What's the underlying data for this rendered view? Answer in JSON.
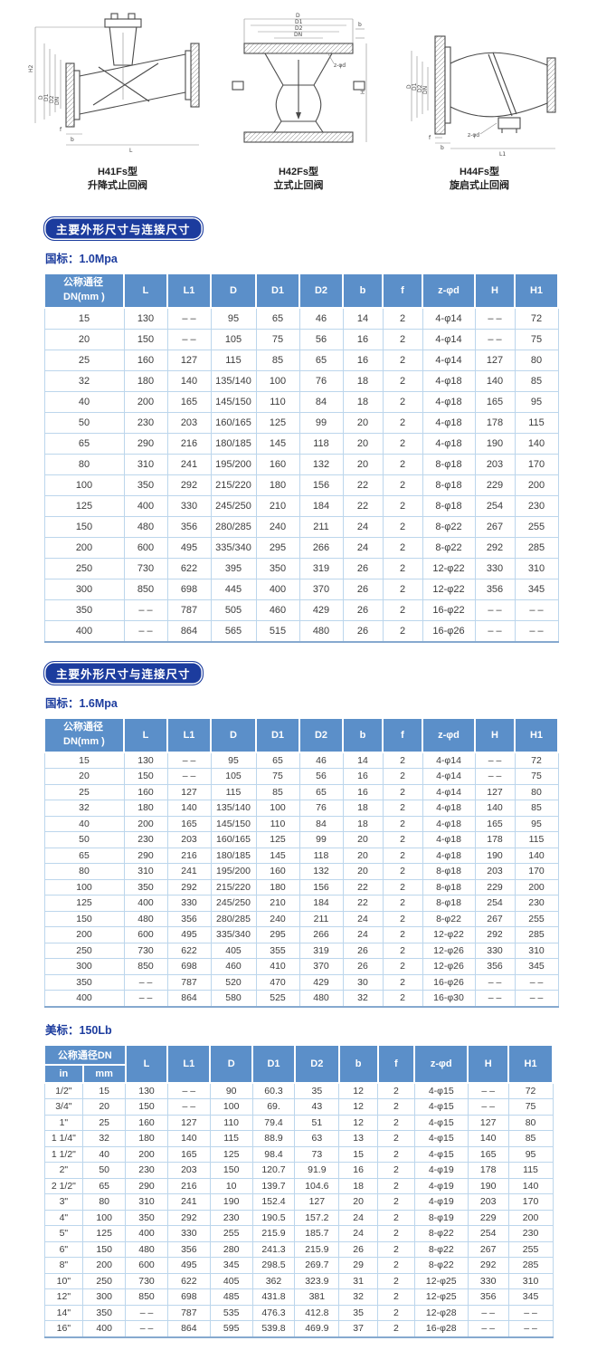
{
  "colors": {
    "accent_navy": "#1c3c9e",
    "table_header_blue": "#5b8fc9",
    "grid_line_blue": "#bcd6ec"
  },
  "drawings": [
    {
      "model": "H41Fs型",
      "name": "升降式止回阀",
      "dims": [
        "H2",
        "D",
        "D1",
        "D2",
        "DN",
        "f",
        "b",
        "L"
      ]
    },
    {
      "model": "H42Fs型",
      "name": "立式止回阀",
      "dims": [
        "D",
        "D1",
        "D2",
        "DN",
        "b",
        "z-φd",
        "H"
      ]
    },
    {
      "model": "H44Fs型",
      "name": "旋启式止回阀",
      "dims": [
        "D",
        "D1",
        "D2",
        "DN",
        "z-φd",
        "f",
        "b",
        "L1"
      ]
    }
  ],
  "sections": [
    {
      "title": "主要外形尺寸与连接尺寸",
      "subtitle": "国标：1.0Mpa",
      "table": {
        "header_dn": [
          "公称通径",
          "DN(mm )"
        ],
        "headers": [
          "L",
          "L1",
          "D",
          "D1",
          "D2",
          "b",
          "f",
          "z-φd",
          "H",
          "H1"
        ],
        "rows": [
          [
            "15",
            "130",
            "– –",
            "95",
            "65",
            "46",
            "14",
            "2",
            "4-φ14",
            "– –",
            "72"
          ],
          [
            "20",
            "150",
            "– –",
            "105",
            "75",
            "56",
            "16",
            "2",
            "4-φ14",
            "– –",
            "75"
          ],
          [
            "25",
            "160",
            "127",
            "115",
            "85",
            "65",
            "16",
            "2",
            "4-φ14",
            "127",
            "80"
          ],
          [
            "32",
            "180",
            "140",
            "135/140",
            "100",
            "76",
            "18",
            "2",
            "4-φ18",
            "140",
            "85"
          ],
          [
            "40",
            "200",
            "165",
            "145/150",
            "110",
            "84",
            "18",
            "2",
            "4-φ18",
            "165",
            "95"
          ],
          [
            "50",
            "230",
            "203",
            "160/165",
            "125",
            "99",
            "20",
            "2",
            "4-φ18",
            "178",
            "115"
          ],
          [
            "65",
            "290",
            "216",
            "180/185",
            "145",
            "118",
            "20",
            "2",
            "4-φ18",
            "190",
            "140"
          ],
          [
            "80",
            "310",
            "241",
            "195/200",
            "160",
            "132",
            "20",
            "2",
            "8-φ18",
            "203",
            "170"
          ],
          [
            "100",
            "350",
            "292",
            "215/220",
            "180",
            "156",
            "22",
            "2",
            "8-φ18",
            "229",
            "200"
          ],
          [
            "125",
            "400",
            "330",
            "245/250",
            "210",
            "184",
            "22",
            "2",
            "8-φ18",
            "254",
            "230"
          ],
          [
            "150",
            "480",
            "356",
            "280/285",
            "240",
            "211",
            "24",
            "2",
            "8-φ22",
            "267",
            "255"
          ],
          [
            "200",
            "600",
            "495",
            "335/340",
            "295",
            "266",
            "24",
            "2",
            "8-φ22",
            "292",
            "285"
          ],
          [
            "250",
            "730",
            "622",
            "395",
            "350",
            "319",
            "26",
            "2",
            "12-φ22",
            "330",
            "310"
          ],
          [
            "300",
            "850",
            "698",
            "445",
            "400",
            "370",
            "26",
            "2",
            "12-φ22",
            "356",
            "345"
          ],
          [
            "350",
            "– –",
            "787",
            "505",
            "460",
            "429",
            "26",
            "2",
            "16-φ22",
            "– –",
            "– –"
          ],
          [
            "400",
            "– –",
            "864",
            "565",
            "515",
            "480",
            "26",
            "2",
            "16-φ26",
            "– –",
            "– –"
          ]
        ]
      }
    },
    {
      "title": "主要外形尺寸与连接尺寸",
      "subtitle": "国标：1.6Mpa",
      "table": {
        "header_dn": [
          "公称通径",
          "DN(mm )"
        ],
        "headers": [
          "L",
          "L1",
          "D",
          "D1",
          "D2",
          "b",
          "f",
          "z-φd",
          "H",
          "H1"
        ],
        "rows": [
          [
            "15",
            "130",
            "– –",
            "95",
            "65",
            "46",
            "14",
            "2",
            "4-φ14",
            "– –",
            "72"
          ],
          [
            "20",
            "150",
            "– –",
            "105",
            "75",
            "56",
            "16",
            "2",
            "4-φ14",
            "– –",
            "75"
          ],
          [
            "25",
            "160",
            "127",
            "115",
            "85",
            "65",
            "16",
            "2",
            "4-φ14",
            "127",
            "80"
          ],
          [
            "32",
            "180",
            "140",
            "135/140",
            "100",
            "76",
            "18",
            "2",
            "4-φ18",
            "140",
            "85"
          ],
          [
            "40",
            "200",
            "165",
            "145/150",
            "110",
            "84",
            "18",
            "2",
            "4-φ18",
            "165",
            "95"
          ],
          [
            "50",
            "230",
            "203",
            "160/165",
            "125",
            "99",
            "20",
            "2",
            "4-φ18",
            "178",
            "115"
          ],
          [
            "65",
            "290",
            "216",
            "180/185",
            "145",
            "118",
            "20",
            "2",
            "4-φ18",
            "190",
            "140"
          ],
          [
            "80",
            "310",
            "241",
            "195/200",
            "160",
            "132",
            "20",
            "2",
            "8-φ18",
            "203",
            "170"
          ],
          [
            "100",
            "350",
            "292",
            "215/220",
            "180",
            "156",
            "22",
            "2",
            "8-φ18",
            "229",
            "200"
          ],
          [
            "125",
            "400",
            "330",
            "245/250",
            "210",
            "184",
            "22",
            "2",
            "8-φ18",
            "254",
            "230"
          ],
          [
            "150",
            "480",
            "356",
            "280/285",
            "240",
            "211",
            "24",
            "2",
            "8-φ22",
            "267",
            "255"
          ],
          [
            "200",
            "600",
            "495",
            "335/340",
            "295",
            "266",
            "24",
            "2",
            "12-φ22",
            "292",
            "285"
          ],
          [
            "250",
            "730",
            "622",
            "405",
            "355",
            "319",
            "26",
            "2",
            "12-φ26",
            "330",
            "310"
          ],
          [
            "300",
            "850",
            "698",
            "460",
            "410",
            "370",
            "26",
            "2",
            "12-φ26",
            "356",
            "345"
          ],
          [
            "350",
            "– –",
            "787",
            "520",
            "470",
            "429",
            "30",
            "2",
            "16-φ26",
            "– –",
            "– –"
          ],
          [
            "400",
            "– –",
            "864",
            "580",
            "525",
            "480",
            "32",
            "2",
            "16-φ30",
            "– –",
            "– –"
          ]
        ]
      }
    },
    {
      "subtitle": "美标：150Lb",
      "table": {
        "group_header": "公称通径DN",
        "sub_headers": [
          "in",
          "mm"
        ],
        "headers": [
          "L",
          "L1",
          "D",
          "D1",
          "D2",
          "b",
          "f",
          "z-φd",
          "H",
          "H1"
        ],
        "rows": [
          [
            "1/2\"",
            "15",
            "130",
            "– –",
            "90",
            "60.3",
            "35",
            "12",
            "2",
            "4-φ15",
            "– –",
            "72"
          ],
          [
            "3/4\"",
            "20",
            "150",
            "– –",
            "100",
            "69.",
            "43",
            "12",
            "2",
            "4-φ15",
            "– –",
            "75"
          ],
          [
            "1\"",
            "25",
            "160",
            "127",
            "110",
            "79.4",
            "51",
            "12",
            "2",
            "4-φ15",
            "127",
            "80"
          ],
          [
            "1 1/4\"",
            "32",
            "180",
            "140",
            "115",
            "88.9",
            "63",
            "13",
            "2",
            "4-φ15",
            "140",
            "85"
          ],
          [
            "1 1/2\"",
            "40",
            "200",
            "165",
            "125",
            "98.4",
            "73",
            "15",
            "2",
            "4-φ15",
            "165",
            "95"
          ],
          [
            "2\"",
            "50",
            "230",
            "203",
            "150",
            "120.7",
            "91.9",
            "16",
            "2",
            "4-φ19",
            "178",
            "115"
          ],
          [
            "2 1/2\"",
            "65",
            "290",
            "216",
            "10",
            "139.7",
            "104.6",
            "18",
            "2",
            "4-φ19",
            "190",
            "140"
          ],
          [
            "3\"",
            "80",
            "310",
            "241",
            "190",
            "152.4",
            "127",
            "20",
            "2",
            "4-φ19",
            "203",
            "170"
          ],
          [
            "4\"",
            "100",
            "350",
            "292",
            "230",
            "190.5",
            "157.2",
            "24",
            "2",
            "8-φ19",
            "229",
            "200"
          ],
          [
            "5\"",
            "125",
            "400",
            "330",
            "255",
            "215.9",
            "185.7",
            "24",
            "2",
            "8-φ22",
            "254",
            "230"
          ],
          [
            "6\"",
            "150",
            "480",
            "356",
            "280",
            "241.3",
            "215.9",
            "26",
            "2",
            "8-φ22",
            "267",
            "255"
          ],
          [
            "8\"",
            "200",
            "600",
            "495",
            "345",
            "298.5",
            "269.7",
            "29",
            "2",
            "8-φ22",
            "292",
            "285"
          ],
          [
            "10\"",
            "250",
            "730",
            "622",
            "405",
            "362",
            "323.9",
            "31",
            "2",
            "12-φ25",
            "330",
            "310"
          ],
          [
            "12\"",
            "300",
            "850",
            "698",
            "485",
            "431.8",
            "381",
            "32",
            "2",
            "12-φ25",
            "356",
            "345"
          ],
          [
            "14\"",
            "350",
            "– –",
            "787",
            "535",
            "476.3",
            "412.8",
            "35",
            "2",
            "12-φ28",
            "– –",
            "– –"
          ],
          [
            "16\"",
            "400",
            "– –",
            "864",
            "595",
            "539.8",
            "469.9",
            "37",
            "2",
            "16-φ28",
            "– –",
            "– –"
          ]
        ]
      }
    }
  ]
}
